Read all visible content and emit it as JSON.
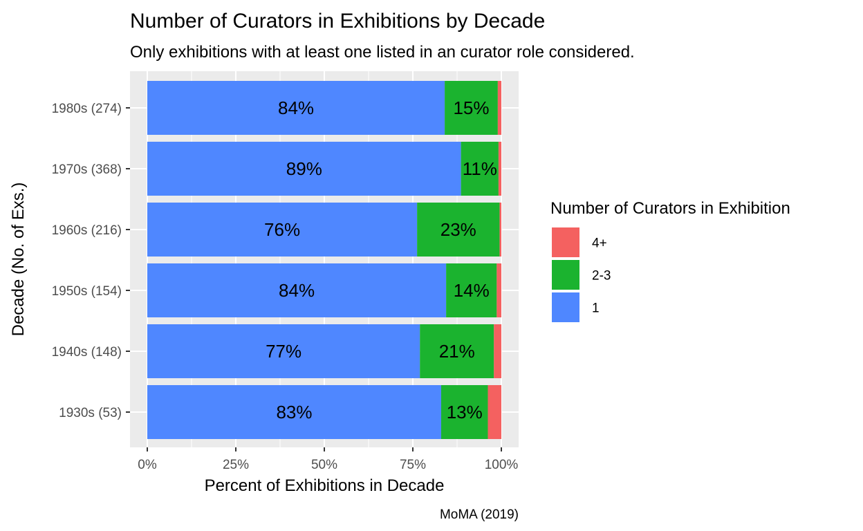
{
  "chart_data": {
    "type": "bar",
    "orientation": "horizontal",
    "stacked": "percent",
    "title": "Number of Curators in Exhibitions by Decade",
    "subtitle": "Only exhibitions with at least one listed in an curator role considered.",
    "xlabel": "Percent of Exhibitions in Decade",
    "ylabel": "Decade (No. of Exs.)",
    "caption": "MoMA (2019)",
    "xlim": [
      0,
      100
    ],
    "x_ticks": [
      "0%",
      "25%",
      "50%",
      "75%",
      "100%"
    ],
    "grid": true,
    "legend": {
      "title": "Number of Curators in Exhibition",
      "position": "right"
    },
    "categories": [
      "1980s (274)",
      "1970s (368)",
      "1960s (216)",
      "1950s (154)",
      "1940s (148)",
      "1930s (53)"
    ],
    "series": [
      {
        "name": "1",
        "color": "#4f87ff",
        "values": [
          84.0,
          88.6,
          76.2,
          84.4,
          77.0,
          83.0
        ],
        "labels": [
          "84%",
          "89%",
          "76%",
          "84%",
          "77%",
          "83%"
        ]
      },
      {
        "name": "2-3",
        "color": "#1bb32f",
        "values": [
          15.0,
          10.6,
          23.3,
          14.3,
          20.9,
          13.2
        ],
        "labels": [
          "15%",
          "11%",
          "23%",
          "14%",
          "21%",
          "13%"
        ]
      },
      {
        "name": "4+",
        "color": "#f46160",
        "values": [
          1.0,
          0.8,
          0.5,
          1.3,
          2.1,
          3.8
        ],
        "labels": [
          "",
          "",
          "",
          "",
          "",
          ""
        ]
      }
    ],
    "legend_order": [
      "4+",
      "2-3",
      "1"
    ]
  }
}
